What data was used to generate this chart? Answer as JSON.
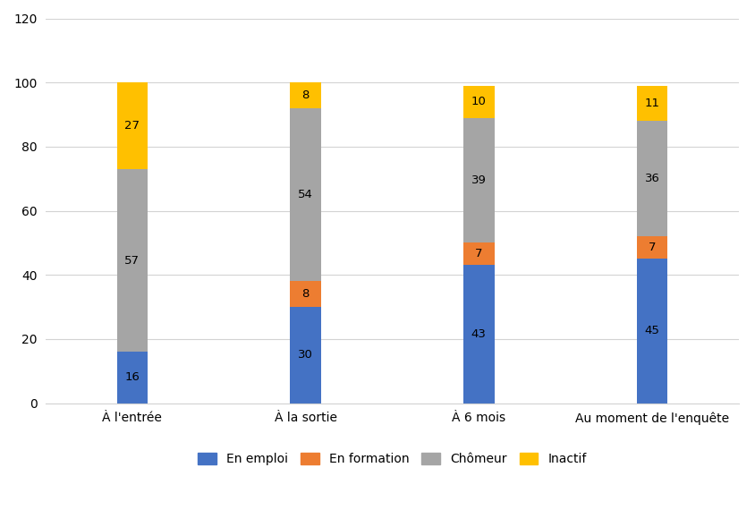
{
  "categories": [
    "À l'entrée",
    "À la sortie",
    "À 6 mois",
    "Au moment de l'enquête"
  ],
  "series": {
    "En emploi": [
      16,
      30,
      43,
      45
    ],
    "En formation": [
      0,
      8,
      7,
      7
    ],
    "Chômeur": [
      57,
      54,
      39,
      36
    ],
    "Inactif": [
      27,
      8,
      10,
      11
    ]
  },
  "colors": {
    "En emploi": "#4472C4",
    "En formation": "#ED7D31",
    "Chômeur": "#A5A5A5",
    "Inactif": "#FFC000"
  },
  "ylim": [
    0,
    120
  ],
  "yticks": [
    0,
    20,
    40,
    60,
    80,
    100,
    120
  ],
  "bar_width": 0.18,
  "legend_order": [
    "En emploi",
    "En formation",
    "Chômeur",
    "Inactif"
  ],
  "background_color": "#FFFFFF",
  "grid_color": "#D3D3D3",
  "label_fontsize": 9.5,
  "tick_fontsize": 10,
  "legend_fontsize": 10
}
